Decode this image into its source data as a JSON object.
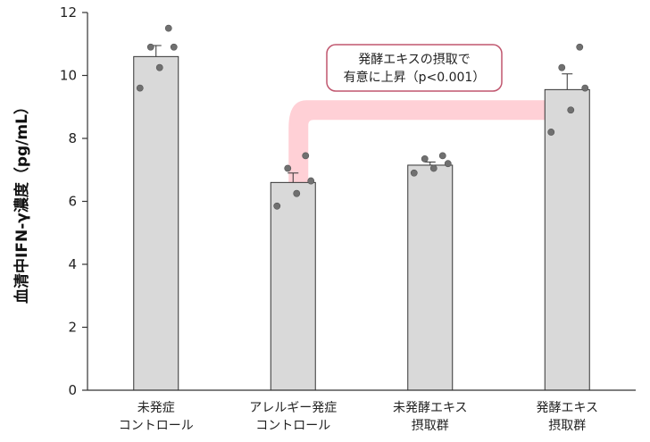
{
  "chart_data": {
    "type": "bar",
    "title": "",
    "xlabel": "",
    "ylabel": "血清中IFN-γ濃度（pg/mL）",
    "ylim": [
      0,
      12
    ],
    "yticks": [
      0,
      2,
      4,
      6,
      8,
      10,
      12
    ],
    "grid": false,
    "categories": [
      [
        "未発症",
        "コントロール"
      ],
      [
        "アレルギー発症",
        "コントロール"
      ],
      [
        "未発酵エキス",
        "摂取群"
      ],
      [
        "発酵エキス",
        "摂取群"
      ]
    ],
    "values": [
      10.6,
      6.6,
      7.15,
      9.55
    ],
    "errors": [
      0.35,
      0.3,
      0.1,
      0.5
    ],
    "points": [
      [
        11.5,
        10.9,
        10.9,
        10.25,
        9.6
      ],
      [
        7.45,
        7.05,
        6.65,
        6.25,
        5.85
      ],
      [
        7.45,
        7.35,
        7.2,
        7.05,
        6.9
      ],
      [
        10.9,
        10.25,
        9.6,
        8.9,
        8.2
      ]
    ],
    "bar_color": "#d9d9d9",
    "point_color": "#707070",
    "annotation": {
      "lines": [
        "発酵エキスの摂取で",
        "有意に上昇（p<0.001）"
      ],
      "from_category": 1,
      "to_category": 3,
      "arrow_color": "#ffd0d6",
      "box_border_color": "#c0566e"
    }
  }
}
